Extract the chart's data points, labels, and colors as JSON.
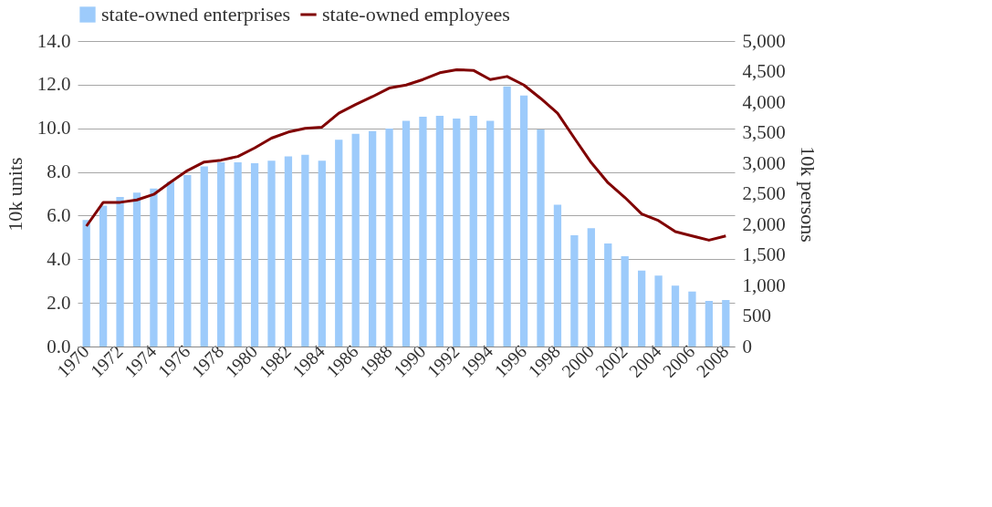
{
  "chart_data": {
    "type": "bar",
    "ylabel": "10k units",
    "y2label": "10k persons",
    "categories": [
      "1970",
      null,
      "1972",
      null,
      "1974",
      null,
      "1976",
      null,
      "1978",
      null,
      "1980",
      null,
      "1982",
      null,
      "1984",
      null,
      "1986",
      null,
      "1988",
      null,
      "1990",
      null,
      "1992",
      null,
      "1994",
      null,
      "1996",
      null,
      "1998",
      null,
      "2000",
      null,
      "2002",
      null,
      "2004",
      null,
      "2006",
      null,
      "2008"
    ],
    "series": [
      {
        "name": "state-owned enterprises",
        "color": "#9dcbfb",
        "values": [
          5.8,
          6.46,
          6.85,
          7.05,
          7.24,
          7.55,
          7.86,
          8.25,
          8.44,
          8.44,
          8.4,
          8.52,
          8.71,
          8.79,
          8.52,
          9.48,
          9.75,
          9.87,
          9.99,
          10.34,
          10.53,
          10.57,
          10.45,
          10.57,
          10.34,
          11.92,
          11.5,
          9.95,
          6.5,
          5.1,
          5.42,
          4.72,
          4.14,
          3.48,
          3.25,
          2.79,
          2.52,
          2.09,
          2.13
        ]
      },
      {
        "name": "state-owned employees",
        "type": "line",
        "axis": "y2",
        "color": "#800000",
        "values": [
          1970,
          2360,
          2360,
          2400,
          2490,
          2690,
          2880,
          3020,
          3050,
          3110,
          3250,
          3410,
          3510,
          3570,
          3590,
          3820,
          3960,
          4090,
          4230,
          4280,
          4370,
          4480,
          4530,
          4520,
          4370,
          4420,
          4280,
          4060,
          3820,
          3410,
          3010,
          2680,
          2440,
          2170,
          2060,
          1880,
          1810,
          1740,
          1810
        ]
      }
    ],
    "ylim": [
      0,
      14
    ],
    "yticks": [
      {
        "value": 0,
        "label": "0.0"
      },
      {
        "value": 2,
        "label": "2.0"
      },
      {
        "value": 4,
        "label": "4.0"
      },
      {
        "value": 6,
        "label": "6.0"
      },
      {
        "value": 8,
        "label": "8.0"
      },
      {
        "value": 10,
        "label": "10.0"
      },
      {
        "value": 12,
        "label": "12.0"
      },
      {
        "value": 14,
        "label": "14.0"
      }
    ],
    "y2lim": [
      0,
      5000
    ],
    "y2ticks": [
      0,
      500,
      {
        "value": 1000,
        "label": "1,000"
      },
      {
        "value": 1500,
        "label": "1,500"
      },
      {
        "value": 2000,
        "label": "2,000"
      },
      {
        "value": 2500,
        "label": "2,500"
      },
      {
        "value": 3000,
        "label": "3,000"
      },
      {
        "value": 3500,
        "label": "3,500"
      },
      {
        "value": 4000,
        "label": "4,000"
      },
      {
        "value": 4500,
        "label": "4,500"
      },
      {
        "value": 5000,
        "label": "5,000"
      }
    ],
    "grid": "y",
    "legend": "top",
    "line_style": "solid",
    "marker": "none"
  }
}
